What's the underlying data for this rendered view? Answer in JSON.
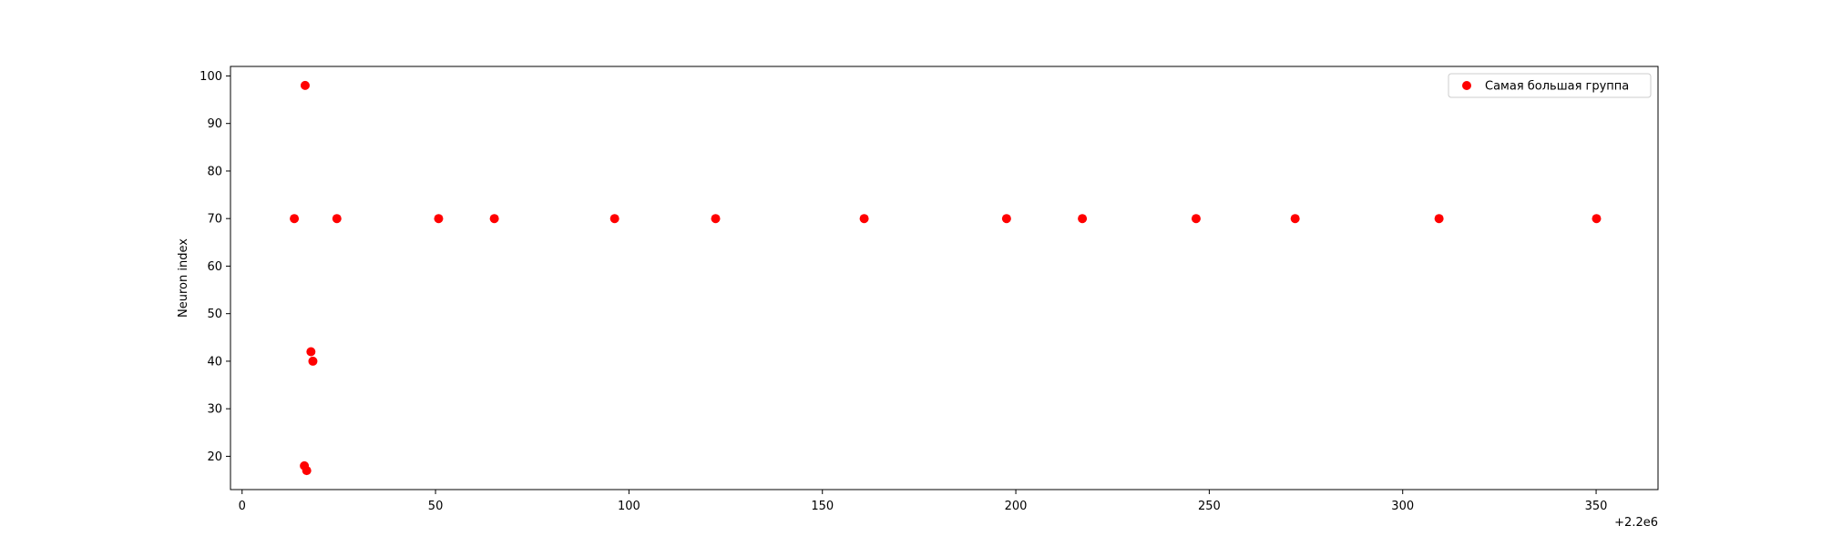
{
  "chart_data": {
    "type": "scatter",
    "title": "",
    "xlabel": "",
    "ylabel": "Neuron index",
    "x_offset_text": "+2.2e6",
    "xlim": [
      -3,
      366
    ],
    "ylim": [
      13,
      102
    ],
    "xticks": [
      0,
      50,
      100,
      150,
      200,
      250,
      300,
      350
    ],
    "yticks": [
      20,
      30,
      40,
      50,
      60,
      70,
      80,
      90,
      100
    ],
    "grid": false,
    "legend_position": "top-right",
    "series": [
      {
        "name": "Самая большая группа",
        "color": "#ff0000",
        "points": [
          {
            "x": 13.5,
            "y": 70
          },
          {
            "x": 16.3,
            "y": 98
          },
          {
            "x": 16.1,
            "y": 18
          },
          {
            "x": 16.7,
            "y": 17
          },
          {
            "x": 17.8,
            "y": 42
          },
          {
            "x": 18.3,
            "y": 40
          },
          {
            "x": 24.5,
            "y": 70
          },
          {
            "x": 50.8,
            "y": 70
          },
          {
            "x": 65.2,
            "y": 70
          },
          {
            "x": 96.3,
            "y": 70
          },
          {
            "x": 122.4,
            "y": 70
          },
          {
            "x": 160.8,
            "y": 70
          },
          {
            "x": 197.6,
            "y": 70
          },
          {
            "x": 217.2,
            "y": 70
          },
          {
            "x": 246.6,
            "y": 70
          },
          {
            "x": 272.2,
            "y": 70
          },
          {
            "x": 309.4,
            "y": 70
          },
          {
            "x": 350.1,
            "y": 70
          }
        ]
      }
    ]
  }
}
